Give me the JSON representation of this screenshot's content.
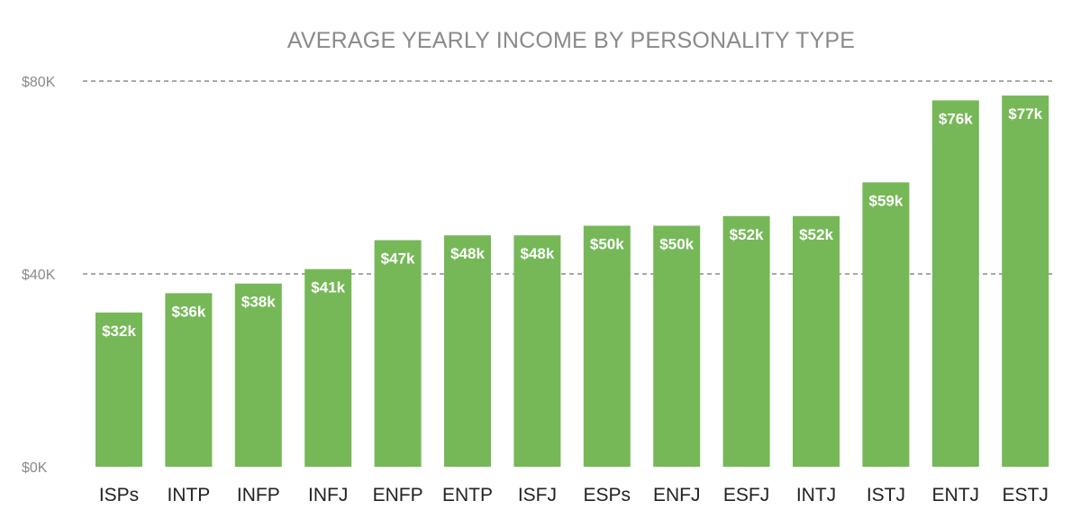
{
  "chart_data": {
    "type": "bar",
    "title": "AVERAGE YEARLY INCOME BY PERSONALITY TYPE",
    "xlabel": "",
    "ylabel": "",
    "categories": [
      "ISPs",
      "INTP",
      "INFP",
      "INFJ",
      "ENFP",
      "ENTP",
      "ISFJ",
      "ESPs",
      "ENFJ",
      "ESFJ",
      "INTJ",
      "ISTJ",
      "ENTJ",
      "ESTJ"
    ],
    "values": [
      32,
      36,
      38,
      41,
      47,
      48,
      48,
      50,
      50,
      52,
      52,
      59,
      76,
      77
    ],
    "value_labels": [
      "$32k",
      "$36k",
      "$38k",
      "$41k",
      "$47k",
      "$48k",
      "$48k",
      "$50k",
      "$50k",
      "$52k",
      "$52k",
      "$59k",
      "$76k",
      "$77k"
    ],
    "unit": "thousand USD",
    "ylim": [
      0,
      80
    ],
    "yticks": [
      0,
      40,
      80
    ],
    "ytick_labels": [
      "$0K",
      "$40K",
      "$80K"
    ],
    "grid": "horizontal dashed at $40K and $80K",
    "legend": "none",
    "colors": {
      "bar": "#76b858",
      "bar_label": "#ffffff",
      "title": "#8a8a8a",
      "axis_text": "#8a8a8a",
      "category_text": "#222222",
      "gridline": "#8c8c8c"
    }
  }
}
